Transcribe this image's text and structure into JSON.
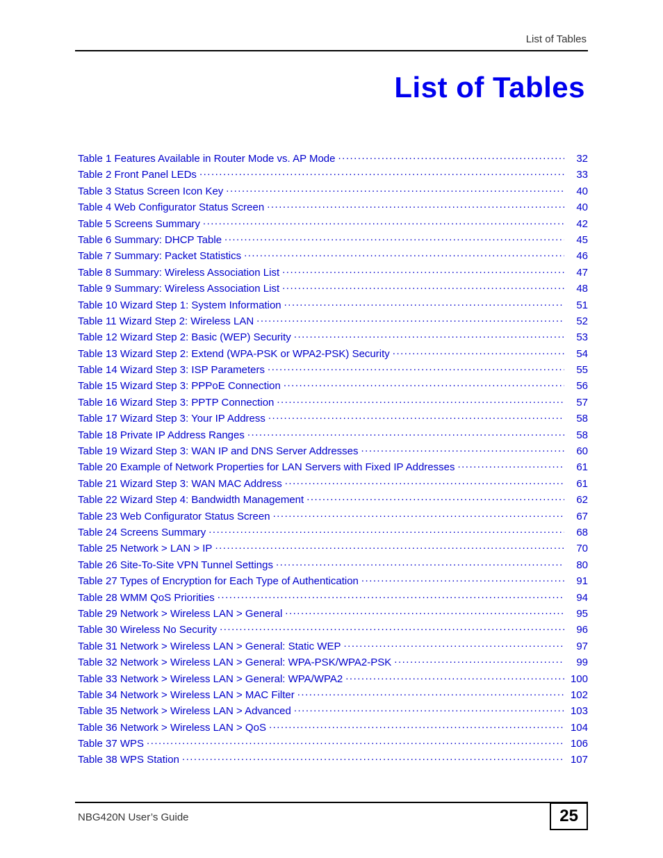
{
  "header": {
    "running_head": "List of Tables"
  },
  "title": "List of Tables",
  "toc": {
    "link_color": "#0000cc",
    "title_color": "#0000ee",
    "entries": [
      {
        "label": "Table 1 Features Available in Router Mode vs. AP Mode",
        "page": "32"
      },
      {
        "label": "Table 2 Front Panel LEDs",
        "page": "33"
      },
      {
        "label": "Table 3 Status Screen Icon Key",
        "page": "40"
      },
      {
        "label": "Table 4 Web Configurator Status Screen   ",
        "page": "40"
      },
      {
        "label": "Table 5 Screens Summary",
        "page": "42"
      },
      {
        "label": "Table 6 Summary: DHCP Table",
        "page": "45"
      },
      {
        "label": "Table 7 Summary: Packet Statistics",
        "page": "46"
      },
      {
        "label": "Table 8 Summary: Wireless Association List",
        "page": "47"
      },
      {
        "label": "Table 9 Summary: Wireless Association List",
        "page": "48"
      },
      {
        "label": "Table 10 Wizard Step 1: System Information",
        "page": "51"
      },
      {
        "label": "Table 11 Wizard Step 2: Wireless LAN",
        "page": "52"
      },
      {
        "label": "Table 12 Wizard Step 2: Basic (WEP) Security",
        "page": "53"
      },
      {
        "label": "Table 13 Wizard Step 2: Extend (WPA-PSK or WPA2-PSK) Security",
        "page": "54"
      },
      {
        "label": "Table 14 Wizard Step 3: ISP Parameters",
        "page": "55"
      },
      {
        "label": "Table 15 Wizard Step 3: PPPoE Connection",
        "page": "56"
      },
      {
        "label": "Table 16 Wizard Step 3: PPTP Connection",
        "page": "57"
      },
      {
        "label": "Table 17 Wizard Step 3: Your IP Address",
        "page": "58"
      },
      {
        "label": "Table 18 Private IP Address Ranges",
        "page": "58"
      },
      {
        "label": "Table 19 Wizard Step 3: WAN IP and DNS Server Addresses",
        "page": "60"
      },
      {
        "label": "Table 20 Example of Network Properties for LAN Servers with Fixed IP Addresses",
        "page": "61"
      },
      {
        "label": "Table 21 Wizard Step 3: WAN MAC Address",
        "page": "61"
      },
      {
        "label": "Table 22 Wizard Step 4: Bandwidth Management",
        "page": "62"
      },
      {
        "label": "Table 23 Web Configurator Status Screen   ",
        "page": "67"
      },
      {
        "label": "Table 24 Screens Summary",
        "page": "68"
      },
      {
        "label": "Table 25 Network > LAN > IP   ",
        "page": "70"
      },
      {
        "label": "Table 26 Site-To-Site VPN Tunnel Settings",
        "page": "80"
      },
      {
        "label": "Table 27 Types of Encryption for Each Type of Authentication",
        "page": "91"
      },
      {
        "label": "Table 28 WMM QoS Priorities",
        "page": "94"
      },
      {
        "label": "Table 29 Network > Wireless LAN > General",
        "page": "95"
      },
      {
        "label": "Table 30 Wireless No Security",
        "page": "96"
      },
      {
        "label": "Table 31 Network > Wireless LAN > General: Static WEP",
        "page": "97"
      },
      {
        "label": "Table 32 Network > Wireless LAN > General: WPA-PSK/WPA2-PSK",
        "page": "99"
      },
      {
        "label": "Table 33 Network > Wireless LAN > General: WPA/WPA2",
        "page": "100"
      },
      {
        "label": "Table 34 Network > Wireless LAN > MAC Filter",
        "page": "102"
      },
      {
        "label": "Table 35 Network > Wireless LAN > Advanced",
        "page": "103"
      },
      {
        "label": "Table 36 Network > Wireless LAN > QoS",
        "page": "104"
      },
      {
        "label": "Table 37 WPS",
        "page": "106"
      },
      {
        "label": "Table 38 WPS Station",
        "page": "107"
      }
    ]
  },
  "footer": {
    "guide": "NBG420N User’s Guide",
    "page_number": "25"
  }
}
